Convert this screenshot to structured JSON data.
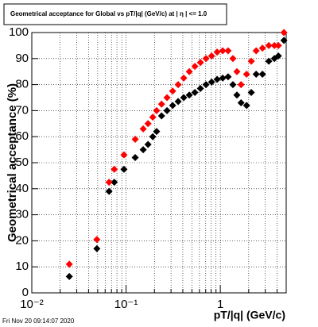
{
  "chart_data": {
    "type": "scatter",
    "title": "Geometrical acceptance for Global vs pT/|q| (GeV/c) at | η | <= 1.0",
    "x_label": "pT/|q| (GeV/c)",
    "y_label": "Geometrical acceptance (%)",
    "footer": "Fri Nov 20 09:14:07 2020",
    "log_x": true,
    "grid": true,
    "xlim": [
      0.01,
      5
    ],
    "ylim": [
      0,
      100
    ],
    "xticks": [
      {
        "value": 0.01,
        "label": "10⁻²"
      },
      {
        "value": 0.1,
        "label": "10⁻¹"
      },
      1
    ],
    "yticks": [
      0,
      10,
      20,
      30,
      40,
      50,
      60,
      70,
      80,
      90,
      100
    ],
    "x": [
      0.025,
      0.049,
      0.066,
      0.075,
      0.095,
      0.125,
      0.152,
      0.171,
      0.192,
      0.211,
      0.238,
      0.272,
      0.312,
      0.357,
      0.409,
      0.469,
      0.537,
      0.615,
      0.705,
      0.808,
      0.925,
      1.06,
      1.21,
      1.36,
      1.5,
      1.66,
      1.9,
      2.13,
      2.4,
      2.8,
      3.27,
      3.75,
      4.13,
      4.73
    ],
    "series": [
      {
        "color": "#000000",
        "values": [
          6.3,
          17,
          39,
          42.5,
          47.5,
          52,
          55,
          57,
          60,
          62,
          68,
          70,
          72,
          73.5,
          75,
          76,
          77,
          78.5,
          80,
          81,
          82,
          82.5,
          83,
          80,
          76,
          73,
          72,
          77,
          84,
          84,
          89,
          90,
          91,
          97
        ]
      },
      {
        "color": "#ff0000",
        "values": [
          11,
          20.5,
          42.5,
          47.5,
          53,
          59,
          63,
          65,
          67.5,
          70,
          72.5,
          75,
          77.5,
          80,
          82.5,
          85,
          87,
          88.5,
          90,
          91,
          92.5,
          93,
          93,
          90,
          85,
          80,
          84,
          89,
          93,
          94,
          95,
          95,
          95,
          100
        ]
      }
    ]
  }
}
